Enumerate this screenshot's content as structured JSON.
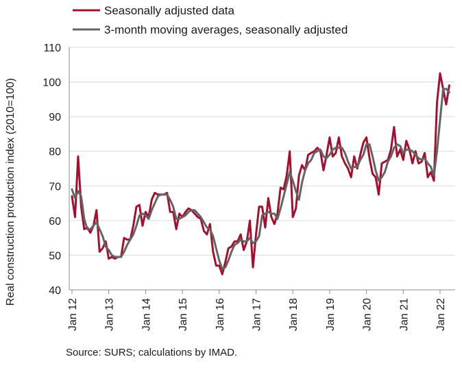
{
  "chart_data": {
    "type": "line",
    "title": "",
    "ylabel": "Real construction production index (2010=100)",
    "xlabel": "",
    "ylim": [
      40,
      110
    ],
    "yticks": [
      40,
      50,
      60,
      70,
      80,
      90,
      100,
      110
    ],
    "x_tick_labels": [
      "Jan 12",
      "Jan 13",
      "Jan 14",
      "Jan 15",
      "Jan 16",
      "Jan 17",
      "Jan 18",
      "Jan 19",
      "Jan 20",
      "Jan 21",
      "Jan 22"
    ],
    "x_start": "2012-01",
    "x_end": "2022-04",
    "grid": "horizontal",
    "legend_position": "top-left",
    "series": [
      {
        "name": "Seasonally adjusted data",
        "color": "#a50f2d",
        "values": [
          67,
          61,
          78.5,
          64,
          57.5,
          58,
          56.5,
          58.5,
          63,
          51,
          52,
          54,
          49,
          49.5,
          49,
          49.5,
          49.5,
          55,
          54.5,
          54.5,
          58.5,
          64,
          64.5,
          58.5,
          62.5,
          61,
          66,
          68,
          67.5,
          67.5,
          67.5,
          68,
          62.5,
          62.5,
          57.5,
          62,
          61,
          62.5,
          63.5,
          63,
          62,
          61,
          60.5,
          57,
          56,
          59,
          51,
          47,
          47,
          44.5,
          48,
          52,
          52.5,
          54,
          54,
          56,
          51.5,
          54,
          60,
          46.5,
          56,
          64,
          64,
          58,
          66.5,
          61,
          59,
          62,
          69.5,
          69,
          73,
          80,
          61,
          63.5,
          73,
          76,
          74.5,
          79,
          79.5,
          80,
          81,
          80,
          74.5,
          79,
          84,
          78.5,
          79.5,
          84,
          78.5,
          76.5,
          75,
          72.5,
          78.5,
          75,
          79,
          82.5,
          84,
          78,
          73.5,
          72.5,
          67.5,
          76.5,
          77,
          77.5,
          80.5,
          87,
          78.5,
          80.5,
          77.5,
          83,
          80.5,
          76.5,
          80,
          76.5,
          77,
          79.5,
          72.5,
          74,
          71.5,
          94,
          102.5,
          98,
          93.5,
          99
        ]
      },
      {
        "name": "3-month moving averages, seasonally adjusted",
        "color": "#646464",
        "values": [
          69,
          66.5,
          68.5,
          67,
          60.5,
          57.5,
          57.5,
          58.5,
          59.5,
          57.5,
          55.5,
          52.5,
          51.5,
          50,
          49.5,
          49.5,
          49.5,
          51,
          53,
          54.5,
          56,
          58.5,
          61.5,
          62,
          61.5,
          60.5,
          63,
          65,
          67,
          67.5,
          67.5,
          67.5,
          66,
          64,
          60.5,
          60.5,
          61,
          61.5,
          62.5,
          63,
          63,
          62,
          61,
          59.5,
          58,
          57.5,
          55.5,
          52,
          48.5,
          46,
          46.5,
          48.5,
          51,
          53,
          53.5,
          54.5,
          54,
          54,
          55,
          53.5,
          54,
          55.5,
          61.5,
          62,
          62.5,
          62,
          62,
          60.5,
          63.5,
          67,
          70.5,
          74,
          71.5,
          68.5,
          66,
          71,
          74.5,
          76.5,
          77.5,
          79.5,
          80,
          80.5,
          78.5,
          78,
          79,
          80.5,
          81,
          81,
          81,
          79.5,
          77,
          75,
          75.5,
          75.5,
          77.5,
          79,
          82,
          82,
          78.5,
          74.5,
          71.5,
          72.5,
          74,
          77,
          78.5,
          81,
          82,
          81.5,
          79.5,
          80.5,
          80.5,
          80,
          79,
          78,
          77.5,
          78,
          76.5,
          75.5,
          73,
          80,
          89,
          98,
          98,
          97
        ]
      }
    ],
    "source": "Source: SURS; calculations by IMAD."
  }
}
